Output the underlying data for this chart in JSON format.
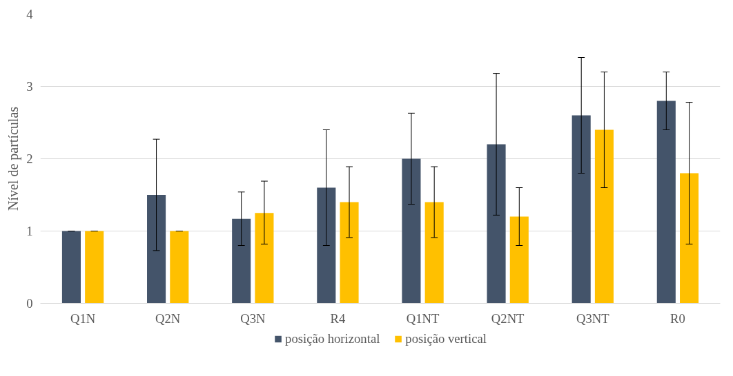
{
  "chart_data": {
    "type": "bar",
    "ylabel": "Nível de partículas",
    "categories": [
      "Q1N",
      "Q2N",
      "Q3N",
      "R4",
      "Q1NT",
      "Q2NT",
      "Q3NT",
      "R0"
    ],
    "series": [
      {
        "name": "posição horizontal",
        "color": "#44546a",
        "values": [
          1.0,
          1.5,
          1.17,
          1.6,
          2.0,
          2.2,
          2.6,
          2.8
        ],
        "errors": [
          [
            1.0,
            1.0
          ],
          [
            0.73,
            2.27
          ],
          [
            0.8,
            1.54
          ],
          [
            0.8,
            2.4
          ],
          [
            1.37,
            2.63
          ],
          [
            1.22,
            3.18
          ],
          [
            1.8,
            3.4
          ],
          [
            2.4,
            3.2
          ]
        ]
      },
      {
        "name": "posição vertical",
        "color": "#ffc000",
        "values": [
          1.0,
          1.0,
          1.25,
          1.4,
          1.4,
          1.2,
          2.4,
          1.8
        ],
        "errors": [
          [
            1.0,
            1.0
          ],
          [
            1.0,
            1.0
          ],
          [
            0.82,
            1.69
          ],
          [
            0.91,
            1.89
          ],
          [
            0.91,
            1.89
          ],
          [
            0.8,
            1.6
          ],
          [
            1.6,
            3.2
          ],
          [
            0.82,
            2.78
          ]
        ]
      }
    ],
    "ylim": [
      0,
      4
    ],
    "yticks": [
      0,
      1,
      2,
      3,
      4
    ],
    "grid": "y",
    "legend": "bottom"
  }
}
